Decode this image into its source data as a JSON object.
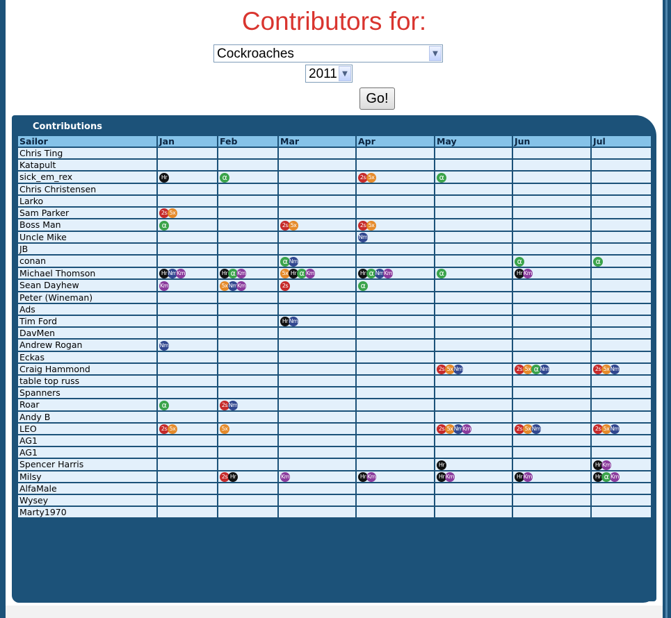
{
  "page": {
    "title": "Contributors for:"
  },
  "filters": {
    "team": "Cockroaches",
    "year": "2011",
    "go_label": "Go!"
  },
  "panel": {
    "title": "Contributions"
  },
  "table": {
    "headers": [
      "Sailor",
      "Jan",
      "Feb",
      "Mar",
      "Apr",
      "May",
      "Jun",
      "Jul"
    ],
    "rows": [
      {
        "sailor": "Chris Ting",
        "months": [
          [],
          [],
          [],
          [],
          [],
          [],
          []
        ]
      },
      {
        "sailor": "Katapult",
        "months": [
          [],
          [],
          [],
          [],
          [],
          [],
          []
        ]
      },
      {
        "sailor": "sick_em_rex",
        "months": [
          [
            "Hr"
          ],
          [
            "α"
          ],
          [],
          [
            "2s",
            "5x"
          ],
          [
            "α"
          ],
          [],
          []
        ]
      },
      {
        "sailor": "Chris Christensen",
        "months": [
          [],
          [],
          [],
          [],
          [],
          [],
          []
        ]
      },
      {
        "sailor": "Larko",
        "months": [
          [],
          [],
          [],
          [],
          [],
          [],
          []
        ]
      },
      {
        "sailor": "Sam Parker",
        "months": [
          [
            "2s",
            "5x"
          ],
          [],
          [],
          [],
          [],
          [],
          []
        ]
      },
      {
        "sailor": "Boss Man",
        "months": [
          [
            "α"
          ],
          [],
          [
            "2s",
            "5x"
          ],
          [
            "2s",
            "5x"
          ],
          [],
          [],
          []
        ]
      },
      {
        "sailor": "Uncle Mike",
        "months": [
          [],
          [],
          [],
          [
            "Nm"
          ],
          [],
          [],
          []
        ]
      },
      {
        "sailor": "JB",
        "months": [
          [],
          [],
          [],
          [],
          [],
          [],
          []
        ]
      },
      {
        "sailor": "conan",
        "months": [
          [],
          [],
          [
            "α",
            "Nm"
          ],
          [],
          [],
          [
            "α"
          ],
          [
            "α"
          ]
        ]
      },
      {
        "sailor": "Michael Thomson",
        "months": [
          [
            "Hr",
            "Nm",
            "Km"
          ],
          [
            "Hr",
            "α",
            "Km"
          ],
          [
            "5x",
            "Hr",
            "α",
            "Km"
          ],
          [
            "Hr",
            "α",
            "Nm",
            "Km"
          ],
          [
            "α"
          ],
          [
            "Hr",
            "Km"
          ],
          []
        ]
      },
      {
        "sailor": "Sean Dayhew",
        "months": [
          [
            "Km"
          ],
          [
            "5x",
            "Nm",
            "Km"
          ],
          [
            "2s"
          ],
          [
            "α"
          ],
          [],
          [],
          []
        ]
      },
      {
        "sailor": "Peter (Wineman)",
        "months": [
          [],
          [],
          [],
          [],
          [],
          [],
          []
        ]
      },
      {
        "sailor": "Ads",
        "months": [
          [],
          [],
          [],
          [],
          [],
          [],
          []
        ]
      },
      {
        "sailor": "Tim Ford",
        "months": [
          [],
          [],
          [
            "Hr",
            "Nm"
          ],
          [],
          [],
          [],
          []
        ]
      },
      {
        "sailor": "DavMen",
        "months": [
          [],
          [],
          [],
          [],
          [],
          [],
          []
        ]
      },
      {
        "sailor": "Andrew Rogan",
        "months": [
          [
            "Nm"
          ],
          [],
          [],
          [],
          [],
          [],
          []
        ]
      },
      {
        "sailor": "Eckas",
        "months": [
          [],
          [],
          [],
          [],
          [],
          [],
          []
        ]
      },
      {
        "sailor": "Craig Hammond",
        "months": [
          [],
          [],
          [],
          [],
          [
            "2s",
            "5x",
            "Nm"
          ],
          [
            "2s",
            "5x",
            "α",
            "Nm"
          ],
          [
            "2s",
            "5x",
            "Nm"
          ]
        ]
      },
      {
        "sailor": "table top russ",
        "months": [
          [],
          [],
          [],
          [],
          [],
          [],
          []
        ]
      },
      {
        "sailor": "Spanners",
        "months": [
          [],
          [],
          [],
          [],
          [],
          [],
          []
        ]
      },
      {
        "sailor": "Roar",
        "months": [
          [
            "α"
          ],
          [
            "2s",
            "Nm"
          ],
          [],
          [],
          [],
          [],
          []
        ]
      },
      {
        "sailor": "Andy B",
        "months": [
          [],
          [],
          [],
          [],
          [],
          [],
          []
        ]
      },
      {
        "sailor": "LEO",
        "months": [
          [
            "2s",
            "5x"
          ],
          [
            "5x"
          ],
          [],
          [],
          [
            "2s",
            "5x",
            "Nm",
            "Km"
          ],
          [
            "2s",
            "5x",
            "Nm"
          ],
          [
            "2s",
            "5x",
            "Nm"
          ]
        ]
      },
      {
        "sailor": "AG1",
        "months": [
          [],
          [],
          [],
          [],
          [],
          [],
          []
        ]
      },
      {
        "sailor": "AG1",
        "months": [
          [],
          [],
          [],
          [],
          [],
          [],
          []
        ]
      },
      {
        "sailor": "Spencer Harris",
        "months": [
          [],
          [],
          [],
          [],
          [
            "Hr"
          ],
          [],
          [
            "Hr",
            "Km"
          ]
        ]
      },
      {
        "sailor": "Milsy",
        "months": [
          [],
          [
            "2s",
            "Hr"
          ],
          [
            "Km"
          ],
          [
            "Hr",
            "Km"
          ],
          [
            "Hr",
            "Km"
          ],
          [
            "Hr",
            "Km"
          ],
          [
            "Hr",
            "α",
            "Km"
          ]
        ]
      },
      {
        "sailor": "AlfaMale",
        "months": [
          [],
          [],
          [],
          [],
          [],
          [],
          []
        ]
      },
      {
        "sailor": "Wysey",
        "months": [
          [],
          [],
          [],
          [],
          [],
          [],
          []
        ]
      },
      {
        "sailor": "Marty1970",
        "months": [
          [],
          [],
          [],
          [],
          [],
          [],
          []
        ]
      }
    ]
  },
  "badge_colors": {
    "2s": "#c62a2a",
    "5x": "#e58a2a",
    "Hr": "#111111",
    "α": "#3aa34a",
    "Nm": "#31478f",
    "Km": "#8a3a9c"
  }
}
